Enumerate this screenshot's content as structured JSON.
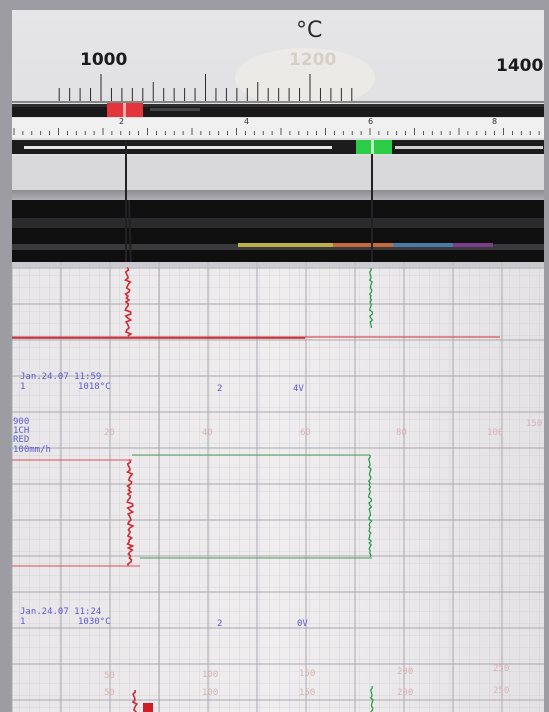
{
  "recorder": {
    "unit": "°C",
    "temperature_scale": [
      "1000",
      "1200",
      "1400"
    ],
    "digit_scale": [
      "2",
      "4",
      "6",
      "8"
    ]
  },
  "chart_paper": {
    "print_block_1": {
      "date_time": "Jan.24.07 11:59",
      "channel": "1",
      "temperature": "1018°C",
      "field_2": "2",
      "voltage": "4V"
    },
    "settings": [
      "900",
      "1CH",
      "RED",
      "100mm/h"
    ],
    "scale_top": [
      "20",
      "40",
      "60",
      "80",
      "100",
      "150"
    ],
    "print_block_2": {
      "date_time": "Jan.24.07 11:24",
      "channel": "1",
      "temperature": "1030°C",
      "field_2": "2",
      "voltage": "0V"
    },
    "scale_bottom_1": [
      "50",
      "100",
      "150",
      "200",
      "250"
    ],
    "scale_bottom_2": [
      "50",
      "100",
      "150",
      "200",
      "250"
    ]
  },
  "colors": {
    "red_pen": "#d02a33",
    "green_pen": "#1f9a3a",
    "paper": "#ece9ea",
    "grid": "#bcbcc0",
    "print_ink": "#5a5ad0"
  }
}
